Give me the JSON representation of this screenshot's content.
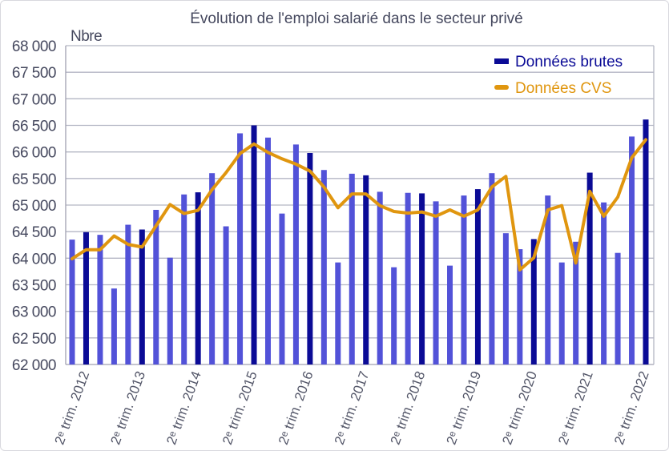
{
  "chart_data": {
    "type": "bar",
    "title": "Évolution de l'emploi salarié dans le secteur privé",
    "ylabel": "Nbre",
    "xlabel": "",
    "ylim": [
      62000,
      68000
    ],
    "ytick_step": 500,
    "ytick_labels": [
      "62 000",
      "62 500",
      "63 000",
      "63 500",
      "64 000",
      "64 500",
      "65 000",
      "65 500",
      "66 000",
      "66 500",
      "67 000",
      "67 500",
      "68 000"
    ],
    "xtick_labels": [
      "2ᵉ trim. 2012",
      "2ᵉ trim. 2013",
      "2ᵉ trim. 2014",
      "2ᵉ trim. 2015",
      "2ᵉ trim. 2016",
      "2ᵉ trim. 2017",
      "2ᵉ trim. 2018",
      "2ᵉ trim. 2019",
      "2ᵉ trim. 2020",
      "2ᵉ trim. 2021",
      "2ᵉ trim. 2022"
    ],
    "grid": true,
    "legend_position": "top-right",
    "series": [
      {
        "name": "Données brutes",
        "type": "bar",
        "color": "#0b0b96",
        "color_other_quarters": "#5252d8",
        "values": [
          64350,
          64490,
          64440,
          63430,
          64630,
          64540,
          64910,
          64010,
          65200,
          65240,
          65600,
          64600,
          66350,
          66500,
          66270,
          64840,
          66140,
          65980,
          65660,
          63920,
          65590,
          65560,
          65250,
          63830,
          65230,
          65220,
          65070,
          63860,
          65180,
          65300,
          65600,
          64470,
          64170,
          64360,
          65180,
          63920,
          64310,
          65610,
          65050,
          64100,
          66290,
          66610
        ]
      },
      {
        "name": "Données CVS",
        "type": "line",
        "color": "#e0960f",
        "values": [
          63990,
          64160,
          64160,
          64420,
          64260,
          64210,
          64610,
          65010,
          64840,
          64900,
          65290,
          65610,
          65970,
          66150,
          65990,
          65870,
          65770,
          65640,
          65340,
          64950,
          65210,
          65210,
          64990,
          64880,
          64850,
          64870,
          64790,
          64910,
          64790,
          64910,
          65340,
          65540,
          63780,
          64010,
          64910,
          64990,
          63910,
          65260,
          64790,
          65150,
          65890,
          66230
        ]
      }
    ]
  }
}
